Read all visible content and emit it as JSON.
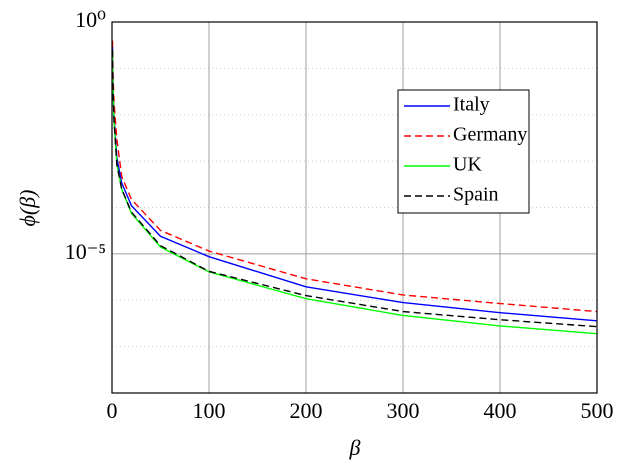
{
  "chart_data": {
    "type": "line",
    "x_label": "β",
    "y_label": "ϕ(β)",
    "x": [
      0.5,
      1,
      2,
      5,
      10,
      20,
      50,
      100,
      200,
      300,
      400,
      500
    ],
    "series": [
      {
        "name": "Italy",
        "color": "#0000ff",
        "dash": "solid",
        "values": [
          0.3,
          0.05,
          0.01,
          0.0012,
          0.00034,
          0.00011,
          2.4e-05,
          8.7e-06,
          1.95e-06,
          8.9e-07,
          5.4e-07,
          3.6e-07
        ]
      },
      {
        "name": "Germany",
        "color": "#ff0000",
        "dash": "dashed",
        "values": [
          0.4,
          0.08,
          0.02,
          0.003,
          0.00047,
          0.00015,
          3.2e-05,
          1.15e-05,
          2.9e-06,
          1.3e-06,
          8.5e-07,
          5.7e-07
        ]
      },
      {
        "name": "UK",
        "color": "#00ff00",
        "dash": "solid",
        "values": [
          0.25,
          0.04,
          0.008,
          0.00085,
          0.00025,
          7.5e-05,
          1.4e-05,
          4.1e-06,
          1.08e-06,
          4.7e-07,
          2.8e-07,
          1.9e-07
        ]
      },
      {
        "name": "Spain",
        "color": "#000000",
        "dash": "dashed",
        "values": [
          0.25,
          0.04,
          0.008,
          0.00085,
          0.00025,
          8e-05,
          1.5e-05,
          4.2e-06,
          1.26e-06,
          5.7e-07,
          3.8e-07,
          2.7e-07
        ]
      }
    ],
    "xlim": [
      0,
      500
    ],
    "xticks": [
      0,
      100,
      200,
      300,
      400,
      500
    ],
    "ylim": [
      1e-08,
      1
    ],
    "y_log": true,
    "yticks": [
      {
        "value": 1,
        "label": "10⁰"
      },
      {
        "value": 1e-05,
        "label": "10⁻⁵"
      }
    ],
    "y_minor_ticks": [
      0.1,
      0.01,
      0.001,
      0.0001,
      1e-06,
      1e-07
    ],
    "grid": true,
    "legend_position": "northeast"
  }
}
